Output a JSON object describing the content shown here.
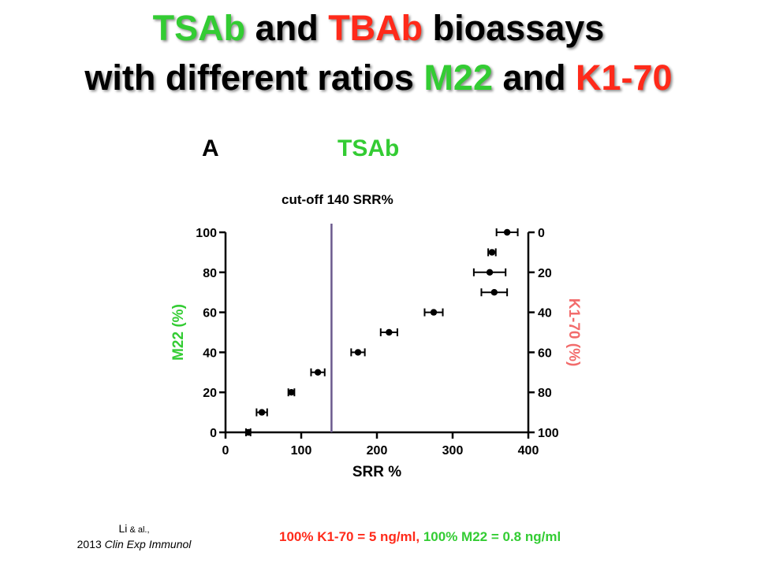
{
  "title": {
    "line1": [
      {
        "text": "TSAb",
        "color": "#33cc33"
      },
      {
        "text": " and ",
        "color": "#000000"
      },
      {
        "text": "TBAb",
        "color": "#ff2a1a"
      },
      {
        "text": " bioassays",
        "color": "#000000"
      }
    ],
    "line2": [
      {
        "text": "with different ratios ",
        "color": "#000000"
      },
      {
        "text": "M22",
        "color": "#33cc33"
      },
      {
        "text": " and ",
        "color": "#000000"
      },
      {
        "text": "K1-70",
        "color": "#ff2a1a"
      }
    ]
  },
  "panel_letter": "A",
  "panel_title": "TSAb",
  "chart_data": {
    "type": "scatter",
    "xlabel": "SRR %",
    "ylabel": "M22 (%)",
    "y2label": "K1-70 (%)",
    "xlim": [
      0,
      400
    ],
    "ylim": [
      0,
      100
    ],
    "y2lim": [
      100,
      0
    ],
    "xticks": [
      0,
      100,
      200,
      300,
      400
    ],
    "yticks": [
      0,
      20,
      40,
      60,
      80,
      100
    ],
    "y2ticks": [
      100,
      80,
      60,
      40,
      20,
      0
    ],
    "grid": false,
    "colors": {
      "ylabel": "#33cc33",
      "y2label": "#f26b6b",
      "points": "#000000",
      "cutoff": "#6b5a8e"
    },
    "reference_line": {
      "x": 140,
      "label": "cut-off 140 SRR%"
    },
    "points": [
      {
        "y": 0,
        "x": 30,
        "xerr": 3
      },
      {
        "y": 10,
        "x": 48,
        "xerr": 7
      },
      {
        "y": 20,
        "x": 87,
        "xerr": 4
      },
      {
        "y": 30,
        "x": 122,
        "xerr": 9
      },
      {
        "y": 40,
        "x": 175,
        "xerr": 9
      },
      {
        "y": 50,
        "x": 216,
        "xerr": 11
      },
      {
        "y": 60,
        "x": 275,
        "xerr": 12
      },
      {
        "y": 70,
        "x": 355,
        "xerr": 17
      },
      {
        "y": 80,
        "x": 349,
        "xerr": 21
      },
      {
        "y": 90,
        "x": 352,
        "xerr": 5
      },
      {
        "y": 100,
        "x": 372,
        "xerr": 14
      }
    ]
  },
  "citation": {
    "author": "Li",
    "etal": " & al.,",
    "year": "2013 ",
    "journal": "Clin Exp Immunol"
  },
  "note": [
    {
      "text": "100% K1-70 = 5 ng/ml, ",
      "color": "#ff2a1a"
    },
    {
      "text": "100% M22 = 0.8 ng/ml",
      "color": "#33cc33"
    }
  ]
}
